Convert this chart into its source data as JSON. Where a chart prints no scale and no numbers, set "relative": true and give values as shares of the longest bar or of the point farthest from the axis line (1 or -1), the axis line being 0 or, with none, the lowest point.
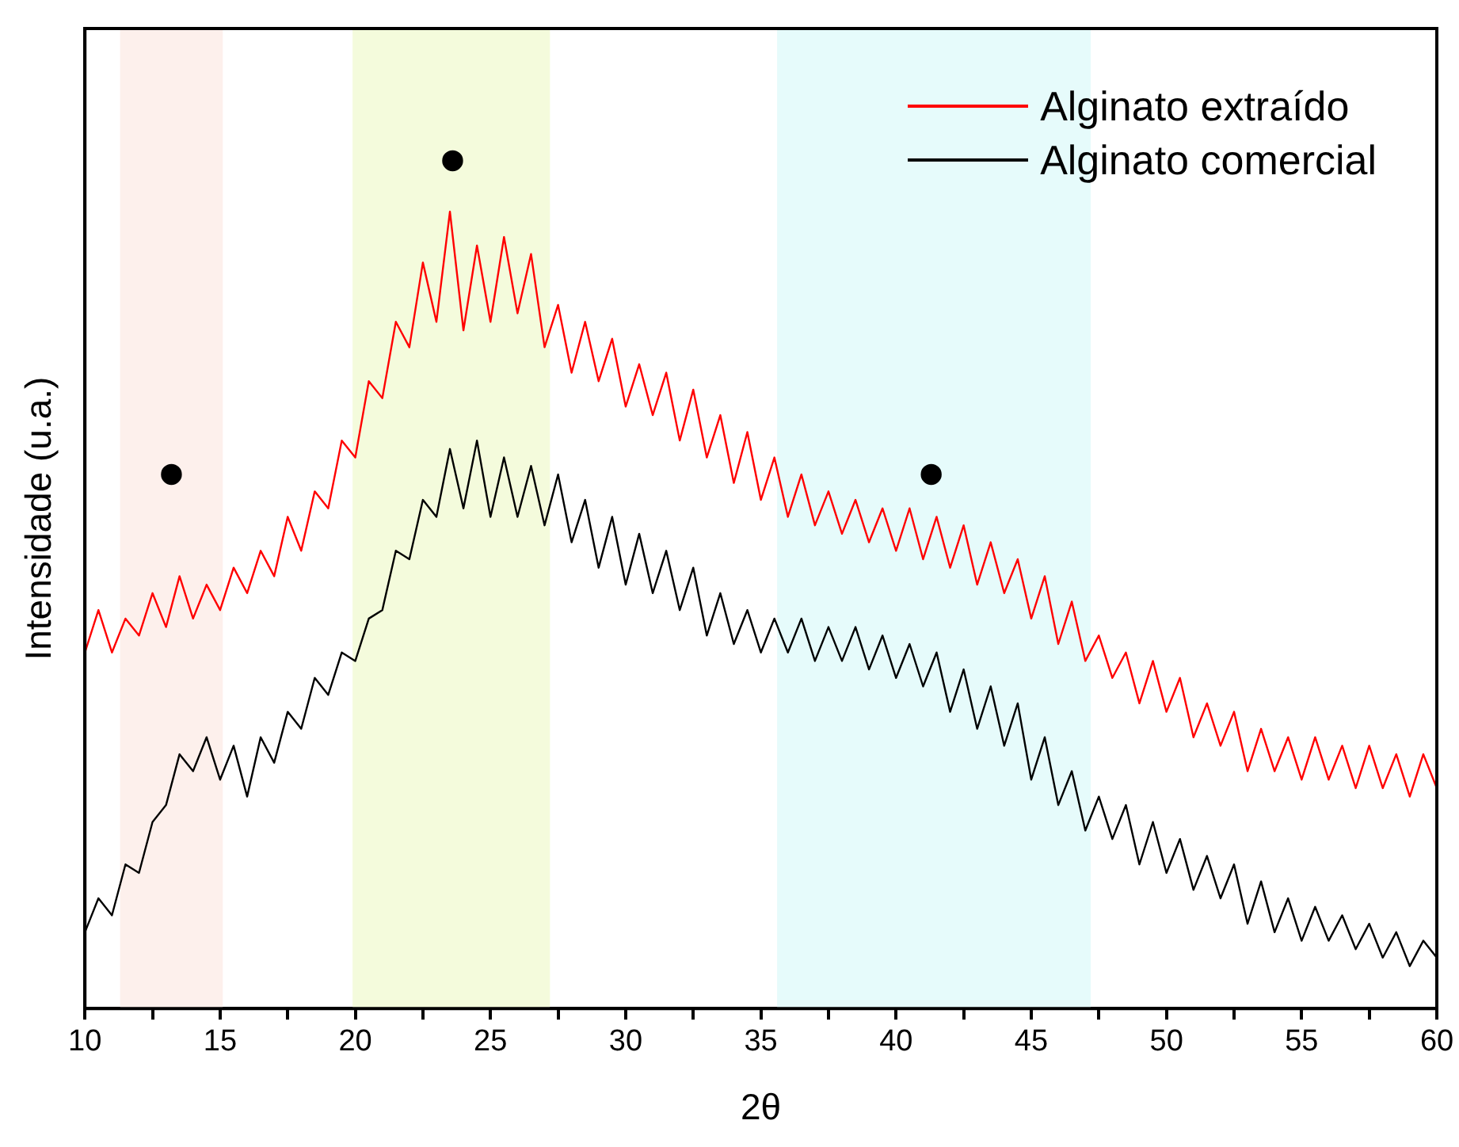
{
  "chart_data": {
    "type": "line",
    "relative": true,
    "xlabel": "2θ",
    "ylabel": "Intensidade (u.a.)",
    "x": [
      10,
      10.5,
      11,
      11.5,
      12,
      12.5,
      13,
      13.5,
      14,
      14.5,
      15,
      15.5,
      16,
      16.5,
      17,
      17.5,
      18,
      18.5,
      19,
      19.5,
      20,
      20.5,
      21,
      21.5,
      22,
      22.5,
      23,
      23.5,
      24,
      24.5,
      25,
      25.5,
      26,
      26.5,
      27,
      27.5,
      28,
      28.5,
      29,
      29.5,
      30,
      30.5,
      31,
      31.5,
      32,
      32.5,
      33,
      33.5,
      34,
      34.5,
      35,
      35.5,
      36,
      36.5,
      37,
      37.5,
      38,
      38.5,
      39,
      39.5,
      40,
      40.5,
      41,
      41.5,
      42,
      42.5,
      43,
      43.5,
      44,
      44.5,
      45,
      45.5,
      46,
      46.5,
      47,
      47.5,
      48,
      48.5,
      49,
      49.5,
      50,
      50.5,
      51,
      51.5,
      52,
      52.5,
      53,
      53.5,
      54,
      54.5,
      55,
      55.5,
      56,
      56.5,
      57,
      57.5,
      58,
      58.5,
      59,
      59.5,
      60
    ],
    "series": [
      {
        "name": "Alginato extraído",
        "color": "#ff0000",
        "values": [
          0.42,
          0.47,
          0.42,
          0.46,
          0.44,
          0.49,
          0.45,
          0.51,
          0.46,
          0.5,
          0.47,
          0.52,
          0.49,
          0.54,
          0.51,
          0.58,
          0.54,
          0.61,
          0.59,
          0.67,
          0.65,
          0.74,
          0.72,
          0.81,
          0.78,
          0.88,
          0.81,
          0.94,
          0.8,
          0.9,
          0.81,
          0.91,
          0.82,
          0.89,
          0.78,
          0.83,
          0.75,
          0.81,
          0.74,
          0.79,
          0.71,
          0.76,
          0.7,
          0.75,
          0.67,
          0.73,
          0.65,
          0.7,
          0.62,
          0.68,
          0.6,
          0.65,
          0.58,
          0.63,
          0.57,
          0.61,
          0.56,
          0.6,
          0.55,
          0.59,
          0.54,
          0.59,
          0.53,
          0.58,
          0.52,
          0.57,
          0.5,
          0.55,
          0.49,
          0.53,
          0.46,
          0.51,
          0.43,
          0.48,
          0.41,
          0.44,
          0.39,
          0.42,
          0.36,
          0.41,
          0.35,
          0.39,
          0.32,
          0.36,
          0.31,
          0.35,
          0.28,
          0.33,
          0.28,
          0.32,
          0.27,
          0.32,
          0.27,
          0.31,
          0.26,
          0.31,
          0.26,
          0.3,
          0.25,
          0.3,
          0.26
        ]
      },
      {
        "name": "Alginato comercial",
        "color": "#000000",
        "values": [
          0.09,
          0.13,
          0.11,
          0.17,
          0.16,
          0.22,
          0.24,
          0.3,
          0.28,
          0.32,
          0.27,
          0.31,
          0.25,
          0.32,
          0.29,
          0.35,
          0.33,
          0.39,
          0.37,
          0.42,
          0.41,
          0.46,
          0.47,
          0.54,
          0.53,
          0.6,
          0.58,
          0.66,
          0.59,
          0.67,
          0.58,
          0.65,
          0.58,
          0.64,
          0.57,
          0.63,
          0.55,
          0.6,
          0.52,
          0.58,
          0.5,
          0.56,
          0.49,
          0.54,
          0.47,
          0.52,
          0.44,
          0.49,
          0.43,
          0.47,
          0.42,
          0.46,
          0.42,
          0.46,
          0.41,
          0.45,
          0.41,
          0.45,
          0.4,
          0.44,
          0.39,
          0.43,
          0.38,
          0.42,
          0.35,
          0.4,
          0.33,
          0.38,
          0.31,
          0.36,
          0.27,
          0.32,
          0.24,
          0.28,
          0.21,
          0.25,
          0.2,
          0.24,
          0.17,
          0.22,
          0.16,
          0.2,
          0.14,
          0.18,
          0.13,
          0.17,
          0.1,
          0.15,
          0.09,
          0.13,
          0.08,
          0.12,
          0.08,
          0.11,
          0.07,
          0.1,
          0.06,
          0.09,
          0.05,
          0.08,
          0.06
        ]
      },
      {
        "type": "scatter",
        "color": "#000000",
        "marker": "circle",
        "x": [
          13.2,
          23.6,
          41.3
        ],
        "values": [
          0.63,
          1.0,
          0.63
        ]
      }
    ],
    "xlim": [
      10,
      60
    ],
    "xticks": [
      10,
      {
        "value": 12.5,
        "label": null
      },
      15,
      {
        "value": 17.5,
        "label": null
      },
      20,
      {
        "value": 22.5,
        "label": null
      },
      25,
      {
        "value": 27.5,
        "label": null
      },
      30,
      {
        "value": 32.5,
        "label": null
      },
      35,
      {
        "value": 37.5,
        "label": null
      },
      40,
      {
        "value": 42.5,
        "label": null
      },
      45,
      {
        "value": 47.5,
        "label": null
      },
      50,
      {
        "value": 52.5,
        "label": null
      },
      55,
      {
        "value": 57.5,
        "label": null
      },
      60
    ],
    "bands": [
      {
        "axis": "x",
        "from": 11.3,
        "to": 15.1,
        "color": "#fdf0ec"
      },
      {
        "axis": "x",
        "from": 19.9,
        "to": 27.2,
        "color": "#f4fbdc"
      },
      {
        "axis": "x",
        "from": 35.6,
        "to": 47.2,
        "color": "#e6fbfb"
      }
    ],
    "grid": false,
    "legend": "top right",
    "marker": "none",
    "line_style": "solid"
  }
}
